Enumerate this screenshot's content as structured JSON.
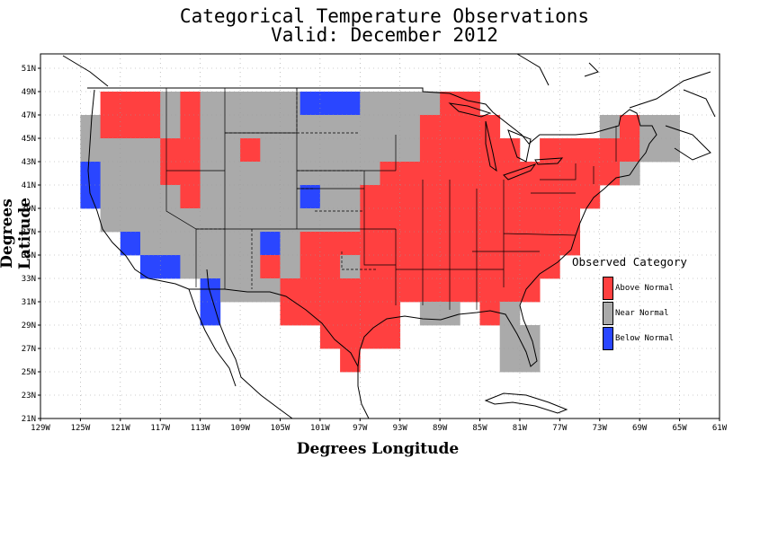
{
  "title_line1": "Categorical Temperature Observations",
  "title_line2": "Valid: December 2012",
  "ylabel": "Degrees Latitude",
  "xlabel": "Degrees Longitude",
  "legend": {
    "title": "Observed Category",
    "items": [
      {
        "label": "Above Normal",
        "color": "#ff4040"
      },
      {
        "label": "Near Normal",
        "color": "#aaaaaa"
      },
      {
        "label": "Below Normal",
        "color": "#2a46ff"
      }
    ]
  },
  "colors": {
    "above": "#ff4040",
    "near": "#aaaaaa",
    "below": "#2a46ff"
  },
  "lat_ticks": [
    "51N",
    "49N",
    "47N",
    "45N",
    "43N",
    "41N",
    "39N",
    "37N",
    "35N",
    "33N",
    "31N",
    "29N",
    "27N",
    "25N",
    "23N",
    "21N"
  ],
  "lon_ticks": [
    "129W",
    "125W",
    "121W",
    "117W",
    "113W",
    "109W",
    "105W",
    "101W",
    "97W",
    "93W",
    "89W",
    "85W",
    "81W",
    "77W",
    "73W",
    "69W",
    "65W",
    "61W"
  ],
  "map": {
    "lon_range": [
      -129,
      -61
    ],
    "lat_range": [
      21,
      52
    ],
    "cell_size_deg": 2,
    "grid": "dotted",
    "data_note_rows": "cells listed as [lon_west, lat_south, category]",
    "cells": [
      [
        "-123",
        "47",
        "A"
      ],
      [
        "-121",
        "47",
        "A"
      ],
      [
        "-119",
        "47",
        "A"
      ],
      [
        "-117",
        "47",
        "N"
      ],
      [
        "-115",
        "47",
        "A"
      ],
      [
        "-113",
        "47",
        "N"
      ],
      [
        "-111",
        "47",
        "N"
      ],
      [
        "-109",
        "47",
        "N"
      ],
      [
        "-107",
        "47",
        "N"
      ],
      [
        "-105",
        "47",
        "N"
      ],
      [
        "-103",
        "47",
        "B"
      ],
      [
        "-101",
        "47",
        "B"
      ],
      [
        "-99",
        "47",
        "B"
      ],
      [
        "-97",
        "47",
        "N"
      ],
      [
        "-95",
        "47",
        "N"
      ],
      [
        "-93",
        "47",
        "N"
      ],
      [
        "-91",
        "47",
        "N"
      ],
      [
        "-89",
        "47",
        "A"
      ],
      [
        "-87",
        "47",
        "A"
      ],
      [
        "-125",
        "45",
        "N"
      ],
      [
        "-123",
        "45",
        "A"
      ],
      [
        "-121",
        "45",
        "A"
      ],
      [
        "-119",
        "45",
        "A"
      ],
      [
        "-117",
        "45",
        "N"
      ],
      [
        "-115",
        "45",
        "A"
      ],
      [
        "-113",
        "45",
        "N"
      ],
      [
        "-111",
        "45",
        "N"
      ],
      [
        "-109",
        "45",
        "N"
      ],
      [
        "-107",
        "45",
        "N"
      ],
      [
        "-105",
        "45",
        "N"
      ],
      [
        "-103",
        "45",
        "N"
      ],
      [
        "-101",
        "45",
        "N"
      ],
      [
        "-99",
        "45",
        "N"
      ],
      [
        "-97",
        "45",
        "N"
      ],
      [
        "-95",
        "45",
        "N"
      ],
      [
        "-93",
        "45",
        "N"
      ],
      [
        "-91",
        "45",
        "A"
      ],
      [
        "-89",
        "45",
        "A"
      ],
      [
        "-87",
        "45",
        "A"
      ],
      [
        "-85",
        "45",
        "A"
      ],
      [
        "-73",
        "45",
        "N"
      ],
      [
        "-71",
        "45",
        "A"
      ],
      [
        "-69",
        "45",
        "N"
      ],
      [
        "-67",
        "45",
        "N"
      ],
      [
        "-125",
        "43",
        "N"
      ],
      [
        "-123",
        "43",
        "N"
      ],
      [
        "-121",
        "43",
        "N"
      ],
      [
        "-119",
        "43",
        "N"
      ],
      [
        "-117",
        "43",
        "A"
      ],
      [
        "-115",
        "43",
        "A"
      ],
      [
        "-113",
        "43",
        "N"
      ],
      [
        "-111",
        "43",
        "N"
      ],
      [
        "-109",
        "43",
        "A"
      ],
      [
        "-107",
        "43",
        "N"
      ],
      [
        "-105",
        "43",
        "N"
      ],
      [
        "-103",
        "43",
        "N"
      ],
      [
        "-101",
        "43",
        "N"
      ],
      [
        "-99",
        "43",
        "N"
      ],
      [
        "-97",
        "43",
        "N"
      ],
      [
        "-95",
        "43",
        "N"
      ],
      [
        "-93",
        "43",
        "N"
      ],
      [
        "-91",
        "43",
        "A"
      ],
      [
        "-89",
        "43",
        "A"
      ],
      [
        "-87",
        "43",
        "A"
      ],
      [
        "-85",
        "43",
        "A"
      ],
      [
        "-83",
        "43",
        "A"
      ],
      [
        "-79",
        "43",
        "A"
      ],
      [
        "-77",
        "43",
        "A"
      ],
      [
        "-75",
        "43",
        "A"
      ],
      [
        "-73",
        "43",
        "A"
      ],
      [
        "-71",
        "43",
        "A"
      ],
      [
        "-69",
        "43",
        "N"
      ],
      [
        "-67",
        "43",
        "N"
      ],
      [
        "-125",
        "41",
        "B"
      ],
      [
        "-123",
        "41",
        "N"
      ],
      [
        "-121",
        "41",
        "N"
      ],
      [
        "-119",
        "41",
        "N"
      ],
      [
        "-117",
        "41",
        "A"
      ],
      [
        "-115",
        "41",
        "A"
      ],
      [
        "-113",
        "41",
        "N"
      ],
      [
        "-111",
        "41",
        "N"
      ],
      [
        "-109",
        "41",
        "N"
      ],
      [
        "-107",
        "41",
        "N"
      ],
      [
        "-105",
        "41",
        "N"
      ],
      [
        "-103",
        "41",
        "N"
      ],
      [
        "-101",
        "41",
        "N"
      ],
      [
        "-99",
        "41",
        "N"
      ],
      [
        "-97",
        "41",
        "N"
      ],
      [
        "-95",
        "41",
        "A"
      ],
      [
        "-93",
        "41",
        "A"
      ],
      [
        "-91",
        "41",
        "A"
      ],
      [
        "-89",
        "41",
        "A"
      ],
      [
        "-87",
        "41",
        "A"
      ],
      [
        "-85",
        "41",
        "A"
      ],
      [
        "-83",
        "41",
        "A"
      ],
      [
        "-81",
        "41",
        "A"
      ],
      [
        "-79",
        "41",
        "A"
      ],
      [
        "-77",
        "41",
        "A"
      ],
      [
        "-75",
        "41",
        "A"
      ],
      [
        "-73",
        "41",
        "A"
      ],
      [
        "-71",
        "41",
        "N"
      ],
      [
        "-125",
        "39",
        "B"
      ],
      [
        "-123",
        "39",
        "N"
      ],
      [
        "-121",
        "39",
        "N"
      ],
      [
        "-119",
        "39",
        "N"
      ],
      [
        "-117",
        "39",
        "N"
      ],
      [
        "-115",
        "39",
        "A"
      ],
      [
        "-113",
        "39",
        "N"
      ],
      [
        "-111",
        "39",
        "N"
      ],
      [
        "-109",
        "39",
        "N"
      ],
      [
        "-107",
        "39",
        "N"
      ],
      [
        "-105",
        "39",
        "N"
      ],
      [
        "-103",
        "39",
        "B"
      ],
      [
        "-101",
        "39",
        "N"
      ],
      [
        "-99",
        "39",
        "N"
      ],
      [
        "-97",
        "39",
        "A"
      ],
      [
        "-95",
        "39",
        "A"
      ],
      [
        "-93",
        "39",
        "A"
      ],
      [
        "-91",
        "39",
        "A"
      ],
      [
        "-89",
        "39",
        "A"
      ],
      [
        "-87",
        "39",
        "A"
      ],
      [
        "-85",
        "39",
        "A"
      ],
      [
        "-83",
        "39",
        "A"
      ],
      [
        "-81",
        "39",
        "A"
      ],
      [
        "-79",
        "39",
        "A"
      ],
      [
        "-77",
        "39",
        "A"
      ],
      [
        "-75",
        "39",
        "A"
      ],
      [
        "-123",
        "37",
        "N"
      ],
      [
        "-121",
        "37",
        "N"
      ],
      [
        "-119",
        "37",
        "N"
      ],
      [
        "-117",
        "37",
        "N"
      ],
      [
        "-115",
        "37",
        "N"
      ],
      [
        "-113",
        "37",
        "N"
      ],
      [
        "-111",
        "37",
        "N"
      ],
      [
        "-109",
        "37",
        "N"
      ],
      [
        "-107",
        "37",
        "N"
      ],
      [
        "-105",
        "37",
        "N"
      ],
      [
        "-103",
        "37",
        "N"
      ],
      [
        "-101",
        "37",
        "N"
      ],
      [
        "-99",
        "37",
        "N"
      ],
      [
        "-97",
        "37",
        "A"
      ],
      [
        "-95",
        "37",
        "A"
      ],
      [
        "-93",
        "37",
        "A"
      ],
      [
        "-91",
        "37",
        "A"
      ],
      [
        "-89",
        "37",
        "A"
      ],
      [
        "-87",
        "37",
        "A"
      ],
      [
        "-85",
        "37",
        "A"
      ],
      [
        "-83",
        "37",
        "A"
      ],
      [
        "-81",
        "37",
        "A"
      ],
      [
        "-79",
        "37",
        "A"
      ],
      [
        "-77",
        "37",
        "A"
      ],
      [
        "-121",
        "35",
        "B"
      ],
      [
        "-119",
        "35",
        "N"
      ],
      [
        "-117",
        "35",
        "N"
      ],
      [
        "-115",
        "35",
        "N"
      ],
      [
        "-113",
        "35",
        "N"
      ],
      [
        "-111",
        "35",
        "N"
      ],
      [
        "-109",
        "35",
        "N"
      ],
      [
        "-107",
        "35",
        "B"
      ],
      [
        "-105",
        "35",
        "N"
      ],
      [
        "-103",
        "35",
        "A"
      ],
      [
        "-101",
        "35",
        "A"
      ],
      [
        "-99",
        "35",
        "A"
      ],
      [
        "-97",
        "35",
        "A"
      ],
      [
        "-95",
        "35",
        "A"
      ],
      [
        "-93",
        "35",
        "A"
      ],
      [
        "-91",
        "35",
        "A"
      ],
      [
        "-89",
        "35",
        "A"
      ],
      [
        "-87",
        "35",
        "A"
      ],
      [
        "-85",
        "35",
        "A"
      ],
      [
        "-83",
        "35",
        "A"
      ],
      [
        "-81",
        "35",
        "A"
      ],
      [
        "-79",
        "35",
        "A"
      ],
      [
        "-77",
        "35",
        "A"
      ],
      [
        "-119",
        "33",
        "B"
      ],
      [
        "-117",
        "33",
        "B"
      ],
      [
        "-115",
        "33",
        "N"
      ],
      [
        "-113",
        "33",
        "N"
      ],
      [
        "-111",
        "33",
        "N"
      ],
      [
        "-109",
        "33",
        "N"
      ],
      [
        "-107",
        "33",
        "A"
      ],
      [
        "-105",
        "33",
        "N"
      ],
      [
        "-103",
        "33",
        "A"
      ],
      [
        "-101",
        "33",
        "A"
      ],
      [
        "-99",
        "33",
        "N"
      ],
      [
        "-97",
        "33",
        "A"
      ],
      [
        "-95",
        "33",
        "A"
      ],
      [
        "-93",
        "33",
        "A"
      ],
      [
        "-91",
        "33",
        "A"
      ],
      [
        "-89",
        "33",
        "A"
      ],
      [
        "-87",
        "33",
        "A"
      ],
      [
        "-85",
        "33",
        "A"
      ],
      [
        "-83",
        "33",
        "A"
      ],
      [
        "-81",
        "33",
        "A"
      ],
      [
        "-79",
        "33",
        "A"
      ],
      [
        "-113",
        "31",
        "B"
      ],
      [
        "-111",
        "31",
        "N"
      ],
      [
        "-109",
        "31",
        "N"
      ],
      [
        "-107",
        "31",
        "N"
      ],
      [
        "-105",
        "31",
        "A"
      ],
      [
        "-103",
        "31",
        "A"
      ],
      [
        "-101",
        "31",
        "A"
      ],
      [
        "-99",
        "31",
        "A"
      ],
      [
        "-97",
        "31",
        "A"
      ],
      [
        "-95",
        "31",
        "A"
      ],
      [
        "-93",
        "31",
        "A"
      ],
      [
        "-91",
        "31",
        "A"
      ],
      [
        "-89",
        "31",
        "A"
      ],
      [
        "-87",
        "31",
        "A"
      ],
      [
        "-85",
        "31",
        "A"
      ],
      [
        "-83",
        "31",
        "A"
      ],
      [
        "-81",
        "31",
        "A"
      ],
      [
        "-113",
        "29",
        "B"
      ],
      [
        "-105",
        "29",
        "A"
      ],
      [
        "-103",
        "29",
        "A"
      ],
      [
        "-101",
        "29",
        "A"
      ],
      [
        "-99",
        "29",
        "A"
      ],
      [
        "-97",
        "29",
        "A"
      ],
      [
        "-95",
        "29",
        "A"
      ],
      [
        "-91",
        "29",
        "N"
      ],
      [
        "-89",
        "29",
        "N"
      ],
      [
        "-85",
        "29",
        "A"
      ],
      [
        "-83",
        "29",
        "N"
      ],
      [
        "-101",
        "27",
        "A"
      ],
      [
        "-99",
        "27",
        "A"
      ],
      [
        "-97",
        "27",
        "A"
      ],
      [
        "-95",
        "27",
        "A"
      ],
      [
        "-83",
        "27",
        "N"
      ],
      [
        "-81",
        "27",
        "N"
      ],
      [
        "-99",
        "25",
        "A"
      ],
      [
        "-83",
        "25",
        "N"
      ],
      [
        "-81",
        "25",
        "N"
      ]
    ]
  }
}
